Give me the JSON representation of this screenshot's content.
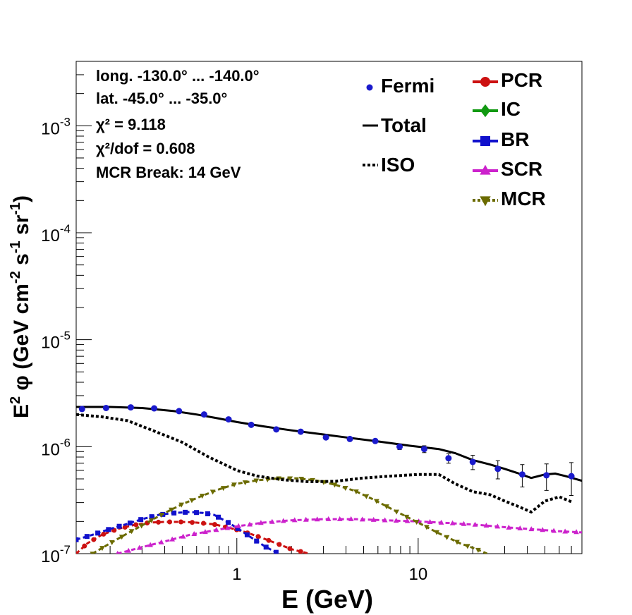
{
  "chart_data": {
    "type": "line",
    "xlabel": "E (GeV)",
    "ylabel_parts": {
      "a": "E",
      "b": "2",
      "c": " φ (GeV cm",
      "d": "-2",
      "e": " s",
      "f": "-1",
      "g": " sr",
      "h": "-1",
      "i": ")"
    },
    "x_scale": "log",
    "y_scale": "log",
    "xlim": [
      0.13,
      80
    ],
    "ylim": [
      1e-07,
      0.004
    ],
    "x_ticks": [
      {
        "value": 1,
        "label": "1"
      },
      {
        "value": 10,
        "label": "10"
      }
    ],
    "y_ticks": [
      {
        "value": 1e-07,
        "base": "10",
        "exp": "-7"
      },
      {
        "value": 1e-06,
        "base": "10",
        "exp": "-6"
      },
      {
        "value": 1e-05,
        "base": "10",
        "exp": "-5"
      },
      {
        "value": 0.0001,
        "base": "10",
        "exp": "-4"
      },
      {
        "value": 0.001,
        "base": "10",
        "exp": "-3"
      }
    ],
    "info_lines": [
      "long. -130.0° ... -140.0°",
      "lat. -45.0° ... -35.0°",
      "χ² = 9.118",
      "χ²/dof = 0.608",
      "MCR Break: 14 GeV"
    ],
    "legend_left": [
      {
        "key": "fermi",
        "label": "Fermi"
      },
      {
        "key": "total",
        "label": "Total"
      },
      {
        "key": "iso",
        "label": "ISO"
      }
    ],
    "legend_right": [
      {
        "key": "pcr",
        "label": "PCR"
      },
      {
        "key": "ic",
        "label": "IC"
      },
      {
        "key": "br",
        "label": "BR"
      },
      {
        "key": "scr",
        "label": "SCR"
      },
      {
        "key": "mcr",
        "label": "MCR"
      }
    ],
    "fermi": {
      "x": [
        0.14,
        0.19,
        0.26,
        0.35,
        0.48,
        0.66,
        0.9,
        1.2,
        1.65,
        2.25,
        3.1,
        4.2,
        5.8,
        7.9,
        10.8,
        14.7,
        20,
        27.5,
        37.5,
        51,
        70
      ],
      "y": [
        2.25e-06,
        2.3e-06,
        2.33e-06,
        2.28e-06,
        2.15e-06,
        2e-06,
        1.8e-06,
        1.6e-06,
        1.45e-06,
        1.38e-06,
        1.22e-06,
        1.18e-06,
        1.13e-06,
        1e-06,
        9.5e-07,
        7.8e-07,
        7.2e-07,
        6.2e-07,
        5.5e-07,
        5.4e-07,
        5.3e-07
      ],
      "err": [
        3e-08,
        3e-08,
        3e-08,
        3e-08,
        3e-08,
        3e-08,
        3e-08,
        3e-08,
        3e-08,
        3e-08,
        4e-08,
        4e-08,
        5e-08,
        6e-08,
        7e-08,
        8e-08,
        1.1e-07,
        1.2e-07,
        1.3e-07,
        1.5e-07,
        1.8e-07
      ],
      "color": "#1a1acc"
    },
    "total": {
      "x": [
        0.13,
        0.2,
        0.3,
        0.45,
        0.6,
        0.8,
        1.0,
        1.4,
        2.0,
        3.0,
        4.0,
        6.0,
        9.0,
        13.0,
        16.0,
        20.0,
        25.0,
        30.0,
        35.0,
        42.0,
        50.0,
        57.0,
        65.0,
        80.0
      ],
      "y": [
        2.35e-06,
        2.35e-06,
        2.3e-06,
        2.15e-06,
        2e-06,
        1.83e-06,
        1.7e-06,
        1.55e-06,
        1.42e-06,
        1.3e-06,
        1.22e-06,
        1.12e-06,
        1.02e-06,
        9.5e-07,
        8.7e-07,
        7.5e-07,
        6.8e-07,
        6.2e-07,
        5.7e-07,
        5.1e-07,
        5.5e-07,
        5.6e-07,
        5.3e-07,
        4.8e-07
      ],
      "color": "#000000"
    },
    "iso": {
      "x": [
        0.13,
        0.18,
        0.25,
        0.35,
        0.5,
        0.7,
        1.0,
        1.3,
        1.8,
        2.5,
        3.5,
        5.0,
        7.0,
        10.0,
        13.0,
        16.0,
        20.0,
        25.0,
        30.0,
        35.0,
        42.0,
        50.0,
        60.0,
        70.0
      ],
      "y": [
        2e-06,
        1.9e-06,
        1.75e-06,
        1.4e-06,
        1.1e-06,
        8e-07,
        6e-07,
        5.3e-07,
        4.9e-07,
        4.7e-07,
        4.75e-07,
        5.1e-07,
        5.3e-07,
        5.5e-07,
        5.5e-07,
        4.5e-07,
        3.8e-07,
        3.55e-07,
        3.1e-07,
        2.8e-07,
        2.45e-07,
        3.1e-07,
        3.4e-07,
        3.05e-07
      ],
      "color": "#000000"
    },
    "pcr": {
      "x": [
        0.13,
        0.15,
        0.18,
        0.22,
        0.27,
        0.33,
        0.4,
        0.5,
        0.6,
        0.75,
        0.9,
        1.1,
        1.35,
        1.65,
        2.0,
        2.5
      ],
      "y": [
        1e-07,
        1.25e-07,
        1.5e-07,
        1.7e-07,
        1.85e-07,
        1.95e-07,
        1.98e-07,
        1.98e-07,
        1.95e-07,
        1.88e-07,
        1.75e-07,
        1.6e-07,
        1.42e-07,
        1.25e-07,
        1.1e-07,
        1e-07
      ],
      "color": "#cc1111"
    },
    "br": {
      "x": [
        0.13,
        0.16,
        0.2,
        0.25,
        0.3,
        0.37,
        0.45,
        0.55,
        0.65,
        0.75,
        0.9,
        1.05,
        1.25,
        1.45,
        1.7
      ],
      "y": [
        1.35e-07,
        1.5e-07,
        1.7e-07,
        1.9e-07,
        2.1e-07,
        2.3e-07,
        2.4e-07,
        2.45e-07,
        2.4e-07,
        2.3e-07,
        1.95e-07,
        1.65e-07,
        1.35e-07,
        1.15e-07,
        1e-07
      ],
      "color": "#1111cc"
    },
    "scr": {
      "x": [
        0.22,
        0.3,
        0.4,
        0.55,
        0.75,
        1.0,
        1.4,
        2.0,
        3.0,
        4.5,
        6.5,
        10.0,
        15.0,
        22.0,
        32.0,
        45.0,
        60.0,
        80.0
      ],
      "y": [
        1e-07,
        1.15e-07,
        1.3e-07,
        1.5e-07,
        1.65e-07,
        1.8e-07,
        1.95e-07,
        2.05e-07,
        2.1e-07,
        2.1e-07,
        2.05e-07,
        2e-07,
        1.93e-07,
        1.85e-07,
        1.75e-07,
        1.68e-07,
        1.62e-07,
        1.58e-07
      ],
      "color": "#cc22cc"
    },
    "mcr": {
      "x": [
        0.16,
        0.2,
        0.25,
        0.32,
        0.4,
        0.5,
        0.65,
        0.8,
        1.0,
        1.3,
        1.7,
        2.2,
        2.8,
        3.5,
        4.5,
        5.8,
        7.5,
        10.0,
        13.0,
        17.0,
        21.0,
        24.0
      ],
      "y": [
        1e-07,
        1.25e-07,
        1.55e-07,
        1.95e-07,
        2.4e-07,
        2.9e-07,
        3.5e-07,
        4e-07,
        4.5e-07,
        4.85e-07,
        5.05e-07,
        5.05e-07,
        4.8e-07,
        4.4e-07,
        3.85e-07,
        3.15e-07,
        2.5e-07,
        1.95e-07,
        1.55e-07,
        1.25e-07,
        1.1e-07,
        1e-07
      ],
      "color": "#6b6b00"
    }
  }
}
